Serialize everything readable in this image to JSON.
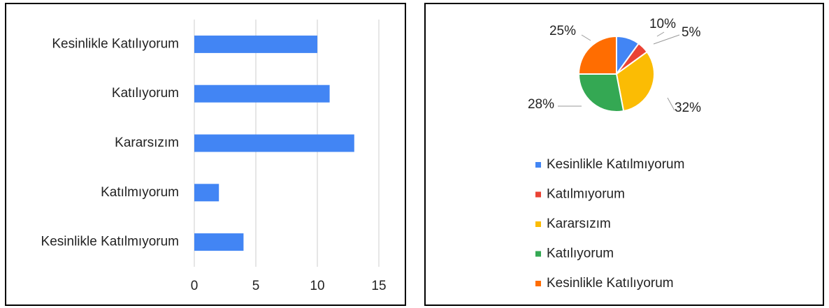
{
  "chart_data": [
    {
      "type": "bar",
      "orientation": "horizontal",
      "categories": [
        "Kesinlikle Katılıyorum",
        "Katılıyorum",
        "Kararsızım",
        "Katılmıyorum",
        "Kesinlikle Katılmıyorum"
      ],
      "values": [
        10,
        11,
        13,
        2,
        4
      ],
      "color": "#4285f4",
      "xlim": [
        0,
        15
      ],
      "xticks": [
        0,
        5,
        10,
        15
      ],
      "grid": true
    },
    {
      "type": "pie",
      "categories": [
        "Kesinlikle Katılmıyorum",
        "Katılmıyorum",
        "Kararsızım",
        "Katılıyorum",
        "Kesinlikle Katılıyorum"
      ],
      "values": [
        10,
        5,
        32,
        28,
        25
      ],
      "value_labels": [
        "10%",
        "5%",
        "32%",
        "28%",
        "25%"
      ],
      "colors": [
        "#4285f4",
        "#ea4335",
        "#fbbc04",
        "#34a853",
        "#ff6d01"
      ],
      "legend": "bottom"
    }
  ]
}
